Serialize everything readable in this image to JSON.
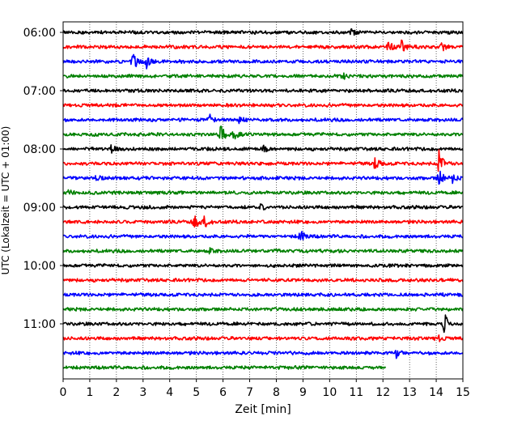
{
  "chart_data": {
    "type": "line",
    "xlabel": "Zeit  [min]",
    "ylabel": "UTC (Lokalzeit = UTC + 01:00)",
    "xlim": [
      0,
      15
    ],
    "x_ticks": [
      "0",
      "1",
      "2",
      "3",
      "4",
      "5",
      "6",
      "7",
      "8",
      "9",
      "10",
      "11",
      "12",
      "13",
      "14",
      "15"
    ],
    "y_ticks": [
      "06:00",
      "07:00",
      "08:00",
      "09:00",
      "10:00",
      "11:00"
    ],
    "grid": "vertical dotted",
    "line_colors": [
      "#000000",
      "#ff0000",
      "#0000ff",
      "#008000"
    ],
    "series": [
      {
        "start": "06:00",
        "color": "#000000",
        "x_end": 15,
        "events": [
          {
            "x": 10.8,
            "amp": 0.25
          }
        ]
      },
      {
        "start": "06:15",
        "color": "#ff0000",
        "x_end": 15,
        "events": [
          {
            "x": 12.2,
            "amp": 0.45
          },
          {
            "x": 12.7,
            "amp": 0.55
          },
          {
            "x": 14.2,
            "amp": 0.35
          }
        ]
      },
      {
        "start": "06:30",
        "color": "#0000ff",
        "x_end": 15,
        "events": [
          {
            "x": 2.6,
            "amp": 0.8
          },
          {
            "x": 3.1,
            "amp": 0.55
          }
        ]
      },
      {
        "start": "06:45",
        "color": "#008000",
        "x_end": 15,
        "events": [
          {
            "x": 10.5,
            "amp": 0.25
          }
        ]
      },
      {
        "start": "07:00",
        "color": "#000000",
        "x_end": 15,
        "events": []
      },
      {
        "start": "07:15",
        "color": "#ff0000",
        "x_end": 15,
        "events": []
      },
      {
        "start": "07:30",
        "color": "#0000ff",
        "x_end": 15,
        "events": [
          {
            "x": 5.5,
            "amp": 0.35
          },
          {
            "x": 6.6,
            "amp": 0.3
          }
        ]
      },
      {
        "start": "07:45",
        "color": "#008000",
        "x_end": 15,
        "events": [
          {
            "x": 5.9,
            "amp": 0.8
          },
          {
            "x": 6.4,
            "amp": 0.45
          }
        ]
      },
      {
        "start": "08:00",
        "color": "#000000",
        "x_end": 15,
        "events": [
          {
            "x": 1.8,
            "amp": 0.25
          },
          {
            "x": 7.5,
            "amp": 0.25
          }
        ]
      },
      {
        "start": "08:15",
        "color": "#ff0000",
        "x_end": 15,
        "events": [
          {
            "x": 11.7,
            "amp": 0.6
          },
          {
            "x": 14.1,
            "amp": 1.05
          }
        ]
      },
      {
        "start": "08:30",
        "color": "#0000ff",
        "x_end": 15,
        "events": [
          {
            "x": 1.2,
            "amp": 0.35
          },
          {
            "x": 14.1,
            "amp": 0.8
          },
          {
            "x": 14.6,
            "amp": 0.45
          }
        ]
      },
      {
        "start": "08:45",
        "color": "#008000",
        "x_end": 15,
        "events": [
          {
            "x": 0.2,
            "amp": 0.25
          }
        ]
      },
      {
        "start": "09:00",
        "color": "#000000",
        "x_end": 15,
        "events": [
          {
            "x": 2.9,
            "amp": 0.25
          },
          {
            "x": 7.4,
            "amp": 0.2
          }
        ]
      },
      {
        "start": "09:15",
        "color": "#ff0000",
        "x_end": 15,
        "events": [
          {
            "x": 4.9,
            "amp": 0.8
          },
          {
            "x": 5.3,
            "amp": 0.45
          }
        ]
      },
      {
        "start": "09:30",
        "color": "#0000ff",
        "x_end": 15,
        "events": [
          {
            "x": 8.9,
            "amp": 0.65
          }
        ]
      },
      {
        "start": "09:45",
        "color": "#008000",
        "x_end": 15,
        "events": [
          {
            "x": 5.5,
            "amp": 0.2
          }
        ]
      },
      {
        "start": "10:00",
        "color": "#000000",
        "x_end": 15,
        "events": []
      },
      {
        "start": "10:15",
        "color": "#ff0000",
        "x_end": 15,
        "events": []
      },
      {
        "start": "10:30",
        "color": "#0000ff",
        "x_end": 15,
        "events": []
      },
      {
        "start": "10:45",
        "color": "#008000",
        "x_end": 15,
        "events": []
      },
      {
        "start": "11:00",
        "color": "#000000",
        "x_end": 15,
        "events": [
          {
            "x": 14.3,
            "amp": 0.85
          }
        ]
      },
      {
        "start": "11:15",
        "color": "#ff0000",
        "x_end": 15,
        "events": [
          {
            "x": 14.0,
            "amp": 0.45
          }
        ]
      },
      {
        "start": "11:30",
        "color": "#0000ff",
        "x_end": 15,
        "events": [
          {
            "x": 12.5,
            "amp": 0.35
          }
        ]
      },
      {
        "start": "11:45",
        "color": "#008000",
        "x_end": 12.1,
        "events": []
      }
    ]
  }
}
